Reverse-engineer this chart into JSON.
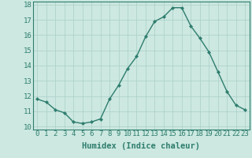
{
  "x": [
    0,
    1,
    2,
    3,
    4,
    5,
    6,
    7,
    8,
    9,
    10,
    11,
    12,
    13,
    14,
    15,
    16,
    17,
    18,
    19,
    20,
    21,
    22,
    23
  ],
  "y": [
    11.8,
    11.6,
    11.1,
    10.9,
    10.3,
    10.2,
    10.3,
    10.5,
    11.8,
    12.7,
    13.8,
    14.6,
    15.9,
    16.9,
    17.2,
    17.8,
    17.8,
    16.6,
    15.8,
    14.9,
    13.6,
    12.3,
    11.4,
    11.1
  ],
  "line_color": "#2e7d6e",
  "marker": "D",
  "marker_size": 2.2,
  "bg_color": "#cce8e0",
  "grid_color": "#aacfc8",
  "xlabel": "Humidex (Indice chaleur)",
  "ylim": [
    9.8,
    18.2
  ],
  "xlim": [
    -0.5,
    23.5
  ],
  "yticks": [
    10,
    11,
    12,
    13,
    14,
    15,
    16,
    17,
    18
  ],
  "xticks": [
    0,
    1,
    2,
    3,
    4,
    5,
    6,
    7,
    8,
    9,
    10,
    11,
    12,
    13,
    14,
    15,
    16,
    17,
    18,
    19,
    20,
    21,
    22,
    23
  ],
  "xlabel_fontsize": 7.5,
  "tick_fontsize": 6.5,
  "line_width": 1.0
}
